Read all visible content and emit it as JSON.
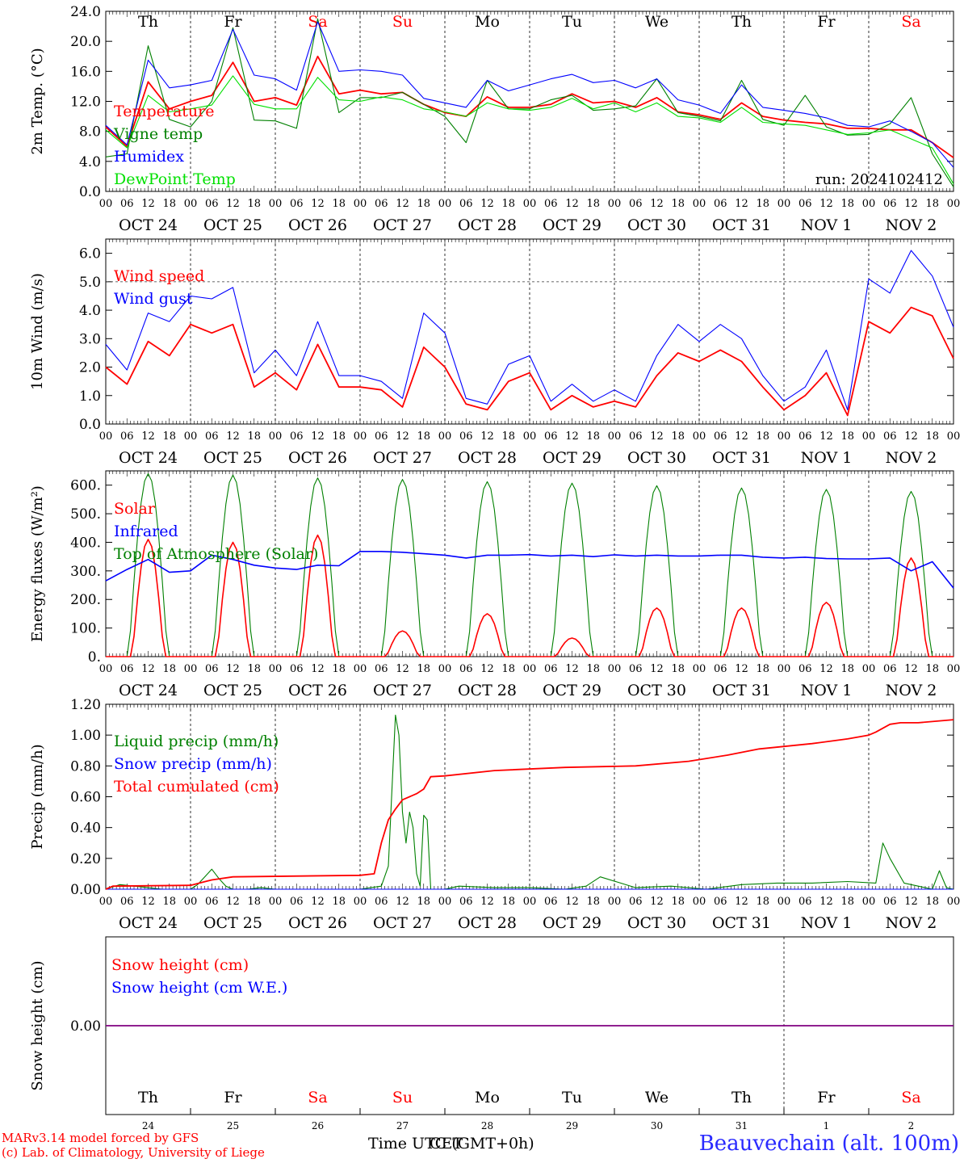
{
  "run_label": "run: 2024102412",
  "time_axis": {
    "hour_ticks": [
      "00",
      "06",
      "12",
      "18"
    ],
    "last_tick": "00",
    "dates": [
      "OCT 24",
      "OCT 25",
      "OCT 26",
      "OCT 27",
      "OCT 28",
      "OCT 29",
      "OCT 30",
      "OCT 31",
      "NOV  1",
      "NOV  2"
    ],
    "weekdays": [
      "Th",
      "Fr",
      "Sa",
      "Su",
      "Mo",
      "Tu",
      "We",
      "Th",
      "Fr",
      "Sa"
    ],
    "weekend_flags": [
      false,
      false,
      true,
      true,
      false,
      false,
      false,
      false,
      false,
      true
    ],
    "day_numbers": [
      "24",
      "25",
      "26",
      "27",
      "28",
      "29",
      "30",
      "31",
      "1",
      "2"
    ],
    "xlabel": "Time UTC (GMT+0h)",
    "xlabel_overprint": "CET"
  },
  "credits": {
    "line1": "MARv3.14 model forced by GFS",
    "line2": "(c) Lab. of Climatology, University of Liege"
  },
  "station": "Beauvechain (alt. 100m)",
  "colors": {
    "red": "#ff0000",
    "green": "#008000",
    "blue": "#0000ff",
    "lime": "#00e000",
    "purple": "#800080",
    "weekend": "#ff0000"
  },
  "chart_data": [
    {
      "type": "line",
      "ylabel": "2m Temp. (°C)",
      "ylim": [
        0,
        24
      ],
      "yticks": [
        "0.0",
        "4.0",
        "8.0",
        "12.0",
        "16.0",
        "20.0",
        "24.0"
      ],
      "x_hours": [
        0,
        6,
        12,
        18,
        24,
        30,
        36,
        42,
        48,
        54,
        60,
        66,
        72,
        78,
        84,
        90,
        96,
        102,
        108,
        114,
        120,
        126,
        132,
        138,
        144,
        150,
        156,
        162,
        168,
        174,
        180,
        186,
        192,
        198,
        204,
        210,
        216,
        222,
        228,
        234,
        240
      ],
      "series": [
        {
          "name": "Temperature",
          "color": "#ff0000",
          "values": [
            8.6,
            6.0,
            14.6,
            11.0,
            12.0,
            12.8,
            17.2,
            12.0,
            12.5,
            11.5,
            18.0,
            13.0,
            13.5,
            13.0,
            13.2,
            11.6,
            10.5,
            10.0,
            12.6,
            11.2,
            11.2,
            11.6,
            13.0,
            11.8,
            12.0,
            11.2,
            12.5,
            10.6,
            10.2,
            9.6,
            11.8,
            10.0,
            9.5,
            9.2,
            9.0,
            8.4,
            8.4,
            8.2,
            8.2,
            6.5,
            4.5
          ]
        },
        {
          "name": "Vigne temp",
          "color": "#008000",
          "values": [
            4.6,
            5.0,
            19.4,
            9.6,
            8.6,
            12.0,
            21.8,
            9.5,
            9.4,
            8.4,
            23.0,
            10.5,
            12.5,
            12.5,
            13.2,
            11.6,
            10.0,
            6.5,
            14.8,
            11.0,
            11.0,
            12.2,
            12.8,
            10.8,
            11.0,
            11.4,
            15.0,
            10.5,
            10.0,
            9.4,
            14.8,
            9.6,
            8.8,
            12.8,
            8.6,
            7.5,
            7.6,
            9.0,
            12.5,
            5.0,
            0.6
          ]
        },
        {
          "name": "Humidex",
          "color": "#0000ff",
          "values": [
            8.8,
            6.2,
            17.5,
            13.8,
            14.2,
            14.8,
            21.6,
            15.5,
            15.0,
            13.5,
            22.6,
            16.0,
            16.2,
            16.0,
            15.5,
            12.4,
            11.8,
            11.2,
            14.8,
            13.4,
            14.2,
            15.0,
            15.6,
            14.5,
            14.8,
            13.8,
            15.0,
            12.2,
            11.5,
            10.4,
            14.2,
            11.2,
            10.8,
            10.4,
            9.8,
            8.8,
            8.6,
            9.4,
            8.0,
            6.5,
            3.2
          ]
        },
        {
          "name": "DewPoint Temp",
          "color": "#00e000",
          "values": [
            8.2,
            5.8,
            12.8,
            10.6,
            11.0,
            11.5,
            15.4,
            11.6,
            11.0,
            11.0,
            15.2,
            12.2,
            12.0,
            12.6,
            12.2,
            11.0,
            10.6,
            10.0,
            11.8,
            11.0,
            10.8,
            11.2,
            12.4,
            11.0,
            11.8,
            10.6,
            11.8,
            10.0,
            9.8,
            9.2,
            11.2,
            9.2,
            9.0,
            8.8,
            8.2,
            7.6,
            7.8,
            8.2,
            7.0,
            5.8,
            1.0
          ]
        }
      ]
    },
    {
      "type": "line",
      "ylabel": "10m Wind (m/s)",
      "ylim": [
        0,
        6.5
      ],
      "yticks": [
        "0.0",
        "1.0",
        "2.0",
        "3.0",
        "4.0",
        "5.0",
        "6.0"
      ],
      "reference_line": 5.0,
      "x_hours": [
        0,
        6,
        12,
        18,
        24,
        30,
        36,
        42,
        48,
        54,
        60,
        66,
        72,
        78,
        84,
        90,
        96,
        102,
        108,
        114,
        120,
        126,
        132,
        138,
        144,
        150,
        156,
        162,
        168,
        174,
        180,
        186,
        192,
        198,
        204,
        210,
        216,
        222,
        228,
        234,
        240
      ],
      "series": [
        {
          "name": "Wind speed",
          "color": "#ff0000",
          "values": [
            2.0,
            1.4,
            2.9,
            2.4,
            3.5,
            3.2,
            3.5,
            1.3,
            1.8,
            1.2,
            2.8,
            1.3,
            1.3,
            1.2,
            0.6,
            2.7,
            2.0,
            0.7,
            0.5,
            1.5,
            1.8,
            0.5,
            1.0,
            0.6,
            0.8,
            0.6,
            1.7,
            2.5,
            2.2,
            2.6,
            2.2,
            1.3,
            0.5,
            1.0,
            1.8,
            0.3,
            3.6,
            3.2,
            4.1,
            3.8,
            2.3
          ]
        },
        {
          "name": "Wind gust",
          "color": "#0000ff",
          "values": [
            2.8,
            1.9,
            3.9,
            3.6,
            4.5,
            4.4,
            4.8,
            1.8,
            2.6,
            1.7,
            3.6,
            1.7,
            1.7,
            1.5,
            0.9,
            3.9,
            3.2,
            0.9,
            0.7,
            2.1,
            2.4,
            0.8,
            1.4,
            0.8,
            1.2,
            0.8,
            2.4,
            3.5,
            2.9,
            3.5,
            3.0,
            1.7,
            0.8,
            1.3,
            2.6,
            0.5,
            5.1,
            4.6,
            6.1,
            5.2,
            3.4
          ]
        }
      ]
    },
    {
      "type": "line",
      "ylabel": "Energy fluxes (W/m²)",
      "ylim": [
        0,
        650
      ],
      "yticks": [
        "0.",
        "100.",
        "200.",
        "300.",
        "400.",
        "500.",
        "600."
      ],
      "series": [
        {
          "name": "Solar",
          "color": "#ff0000",
          "day_peaks": [
            410,
            400,
            425,
            90,
            150,
            65,
            170,
            170,
            190,
            345
          ]
        },
        {
          "name": "Infrared",
          "color": "#0000ff",
          "x_hours": [
            0,
            6,
            12,
            18,
            24,
            30,
            36,
            42,
            48,
            54,
            60,
            66,
            72,
            78,
            84,
            90,
            96,
            102,
            108,
            114,
            120,
            126,
            132,
            138,
            144,
            150,
            156,
            162,
            168,
            174,
            180,
            186,
            192,
            198,
            204,
            210,
            216,
            222,
            228,
            234,
            240
          ],
          "values": [
            265,
            305,
            340,
            295,
            300,
            355,
            340,
            320,
            310,
            305,
            320,
            318,
            368,
            368,
            365,
            360,
            355,
            345,
            355,
            355,
            357,
            352,
            355,
            350,
            356,
            352,
            355,
            352,
            352,
            355,
            355,
            348,
            345,
            348,
            343,
            342,
            342,
            345,
            300,
            332,
            240
          ]
        },
        {
          "name": "Top of Atmosphere (Solar)",
          "color": "#008000",
          "day_peaks": [
            640,
            635,
            625,
            620,
            612,
            607,
            598,
            590,
            585,
            578
          ]
        }
      ]
    },
    {
      "type": "line",
      "ylabel": "Precip (mm/h)",
      "ylim": [
        0,
        1.2
      ],
      "yticks": [
        "0.00",
        "0.20",
        "0.40",
        "0.60",
        "0.80",
        "1.00",
        "1.20"
      ],
      "series": [
        {
          "name": "Liquid precip (mm/h)",
          "color": "#008000",
          "x_hours": [
            0,
            4,
            8,
            12,
            16,
            20,
            24,
            26,
            30,
            32,
            34,
            36,
            40,
            44,
            48,
            60,
            72,
            78,
            80,
            82,
            83,
            84,
            85,
            86,
            87,
            88,
            89,
            90,
            91,
            92,
            94,
            96,
            98,
            100,
            110,
            120,
            130,
            136,
            140,
            150,
            160,
            170,
            180,
            190,
            200,
            210,
            218,
            220,
            222,
            226,
            230,
            234,
            236,
            238,
            240
          ],
          "values": [
            0.0,
            0.03,
            0.02,
            0.01,
            0.0,
            0.0,
            0.0,
            0.03,
            0.13,
            0.07,
            0.02,
            0.0,
            0.0,
            0.01,
            0.0,
            0.0,
            0.0,
            0.02,
            0.15,
            1.13,
            1.0,
            0.5,
            0.3,
            0.5,
            0.4,
            0.1,
            0.02,
            0.48,
            0.45,
            0.0,
            0.0,
            0.0,
            0.01,
            0.02,
            0.01,
            0.01,
            0.0,
            0.02,
            0.08,
            0.01,
            0.02,
            0.0,
            0.03,
            0.04,
            0.04,
            0.05,
            0.04,
            0.3,
            0.2,
            0.04,
            0.02,
            0.0,
            0.12,
            0.01,
            0.0
          ]
        },
        {
          "name": "Snow precip (mm/h)",
          "color": "#0000ff",
          "x_hours": [
            0,
            240
          ],
          "values": [
            0,
            0
          ]
        },
        {
          "name": "Total cumulated (cm)",
          "color": "#ff0000",
          "x_hours": [
            0,
            2,
            24,
            30,
            36,
            72,
            76,
            78,
            80,
            82,
            84,
            88,
            90,
            92,
            96,
            110,
            130,
            150,
            165,
            176,
            185,
            200,
            210,
            216,
            218,
            222,
            225,
            230,
            240
          ],
          "values": [
            0.0,
            0.02,
            0.025,
            0.06,
            0.08,
            0.09,
            0.1,
            0.3,
            0.45,
            0.52,
            0.58,
            0.62,
            0.65,
            0.73,
            0.735,
            0.77,
            0.79,
            0.8,
            0.83,
            0.87,
            0.91,
            0.945,
            0.975,
            1.0,
            1.02,
            1.07,
            1.08,
            1.08,
            1.1
          ]
        }
      ]
    },
    {
      "type": "line",
      "ylabel": "Snow height (cm)",
      "yticks": [
        "0.00"
      ],
      "series": [
        {
          "name": "Snow height (cm)",
          "color": "#ff0000",
          "x_hours": [
            0,
            240
          ],
          "values": [
            0,
            0
          ]
        },
        {
          "name": "Snow height (cm W.E.)",
          "color": "#0000ff",
          "x_hours": [
            0,
            240
          ],
          "values": [
            0,
            0
          ]
        }
      ]
    }
  ]
}
